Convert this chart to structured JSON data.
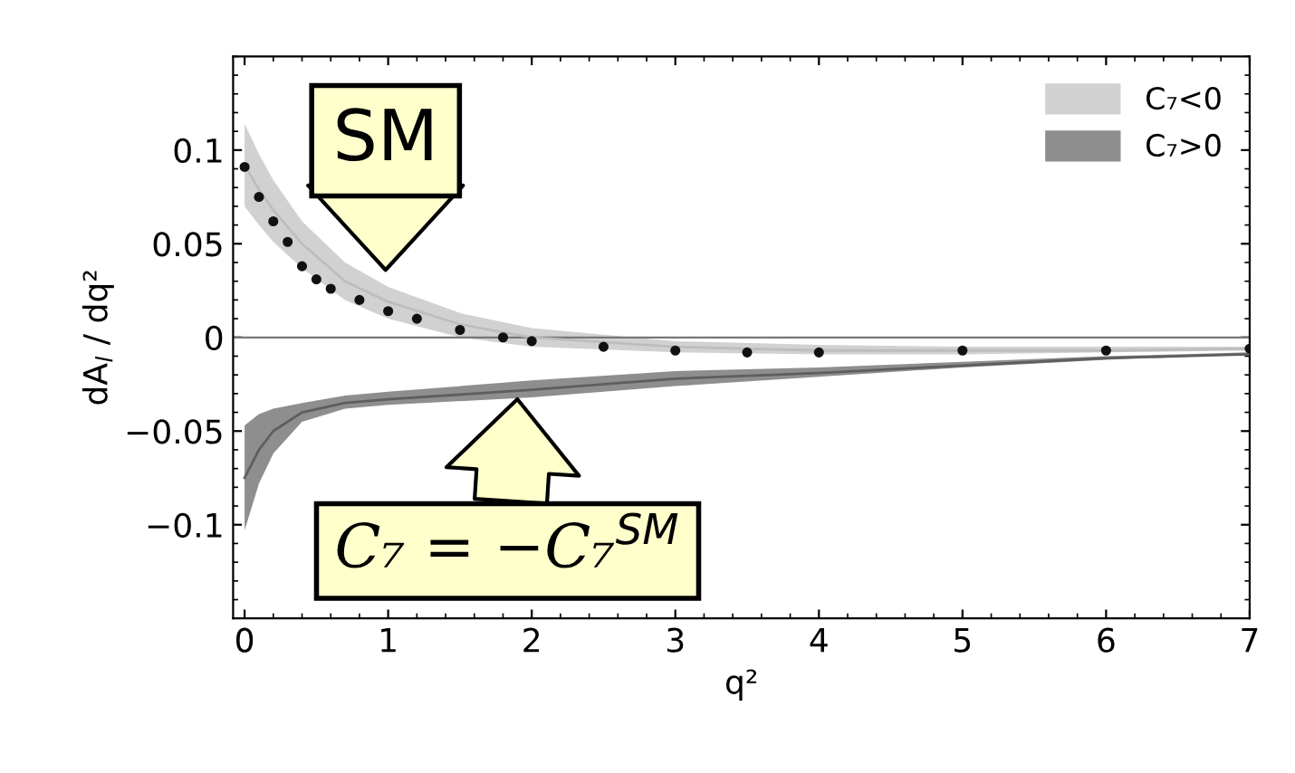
{
  "chart_data": {
    "type": "line",
    "xlabel": "q²",
    "ylabel": "dA$_{l}$ / dq²",
    "xlim": [
      -0.08,
      7
    ],
    "ylim": [
      -0.15,
      0.15
    ],
    "xticks": [
      0,
      1,
      2,
      3,
      4,
      5,
      6,
      7
    ],
    "yticks": [
      {
        "value": -0.1,
        "label": "−0.1"
      },
      {
        "value": -0.05,
        "label": "−0.05"
      },
      0,
      0.05,
      0.1
    ],
    "grid": false,
    "legend": "top right",
    "ref_lines": [
      {
        "axis": "y",
        "value": 0,
        "color": "#777777"
      }
    ],
    "series": [
      {
        "name": "C₇<0",
        "color": "#bdbdbd",
        "x": [
          0,
          0.1,
          0.2,
          0.4,
          0.7,
          1.0,
          1.5,
          2,
          3,
          4,
          5,
          6,
          7
        ],
        "values": [
          0.092,
          0.079,
          0.068,
          0.05,
          0.03,
          0.019,
          0.007,
          0.0,
          -0.005,
          -0.007,
          -0.007,
          -0.007,
          -0.006
        ],
        "upper": [
          0.114,
          0.098,
          0.084,
          0.062,
          0.04,
          0.027,
          0.013,
          0.005,
          -0.002,
          -0.004,
          -0.005,
          -0.005,
          -0.005
        ],
        "lower": [
          0.07,
          0.06,
          0.051,
          0.037,
          0.02,
          0.01,
          0.0,
          -0.005,
          -0.008,
          -0.009,
          -0.009,
          -0.008,
          -0.007
        ]
      },
      {
        "name": "C₇>0",
        "color": "#5e5e5e",
        "x": [
          0,
          0.1,
          0.2,
          0.4,
          0.7,
          1.0,
          2,
          3,
          4,
          5,
          6,
          7
        ],
        "values": [
          -0.075,
          -0.06,
          -0.05,
          -0.04,
          -0.035,
          -0.033,
          -0.028,
          -0.022,
          -0.019,
          -0.015,
          -0.011,
          -0.009
        ],
        "upper": [
          -0.047,
          -0.041,
          -0.038,
          -0.035,
          -0.031,
          -0.029,
          -0.023,
          -0.018,
          -0.016,
          -0.013,
          -0.01,
          -0.008
        ],
        "lower": [
          -0.103,
          -0.078,
          -0.062,
          -0.045,
          -0.038,
          -0.036,
          -0.032,
          -0.026,
          -0.021,
          -0.016,
          -0.012,
          -0.009
        ]
      },
      {
        "type": "scatter",
        "color": "#111111",
        "marker": "circle",
        "x": [
          0,
          0.1,
          0.2,
          0.3,
          0.4,
          0.5,
          0.6,
          0.8,
          1.0,
          1.2,
          1.5,
          1.8,
          2.0,
          2.5,
          3.0,
          3.5,
          4.0,
          5.0,
          6.0,
          7.0
        ],
        "values": [
          0.091,
          0.075,
          0.062,
          0.051,
          0.038,
          0.031,
          0.026,
          0.02,
          0.014,
          0.01,
          0.004,
          0.0,
          -0.002,
          -0.005,
          -0.007,
          -0.008,
          -0.008,
          -0.007,
          -0.007,
          -0.006
        ]
      }
    ],
    "annotations": [
      "SM",
      {
        "text": "C₇ = −C₇$^{SM}$",
        "x": 1.9,
        "y": -0.033
      }
    ]
  }
}
